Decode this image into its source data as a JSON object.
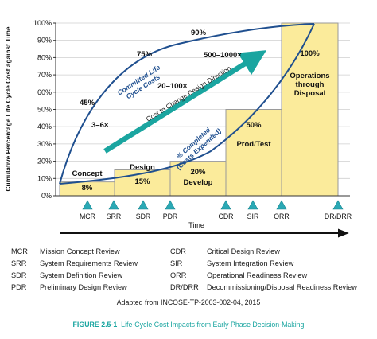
{
  "chart_data": {
    "type": "bar",
    "ylabel": "Cumulative Percentage Life Cycle Cost against Time",
    "xlabel": "Time",
    "ylim": [
      0,
      100
    ],
    "yticks": [
      "0%",
      "10%",
      "20%",
      "30%",
      "40%",
      "50%",
      "60%",
      "70%",
      "80%",
      "90%",
      "100%"
    ],
    "grid": true,
    "phases": [
      {
        "name": "Concept",
        "value_label": "8%",
        "value": 8
      },
      {
        "name": "Design",
        "value_label": "15%",
        "value": 15
      },
      {
        "name": "Develop",
        "value_label": "20%",
        "value": 20
      },
      {
        "name": "Prod/Test",
        "value_label": "50%",
        "value": 50
      },
      {
        "name": "Operations through Disposal",
        "value_label": "100%",
        "value": 100
      }
    ],
    "curves": [
      {
        "name": "Committed Life Cycle Costs",
        "points_labels": [
          "45%",
          "75%",
          "90%"
        ]
      },
      {
        "name": "% Completed (Costs Expended)"
      }
    ],
    "arrow_label": "Cost to Change Design Direction",
    "multipliers": [
      "3–6×",
      "20–100×",
      "500–1000×"
    ],
    "milestones": [
      "MCR",
      "SRR",
      "SDR",
      "PDR",
      "CDR",
      "SIR",
      "ORR",
      "DR/DRR"
    ]
  },
  "legend": {
    "left": [
      {
        "abbr": "MCR",
        "desc": "Mission Concept Review"
      },
      {
        "abbr": "SRR",
        "desc": "System Requirements Review"
      },
      {
        "abbr": "SDR",
        "desc": "System Definition Review"
      },
      {
        "abbr": "PDR",
        "desc": "Preliminary Design Review"
      }
    ],
    "right": [
      {
        "abbr": "CDR",
        "desc": "Critical Design Review"
      },
      {
        "abbr": "SIR",
        "desc": "System Integration Review"
      },
      {
        "abbr": "ORR",
        "desc": "Operational Readiness Review"
      },
      {
        "abbr": "DR/DRR",
        "desc": "Decommissioning/Disposal Readiness Review"
      }
    ]
  },
  "source": "Adapted from INCOSE-TP-2003-002-04, 2015",
  "caption": {
    "label": "FIGURE 2.5-1",
    "text": "Life-Cycle Cost Impacts from Early Phase Decision-Making"
  },
  "colors": {
    "bar_fill": "#fbeb9b",
    "bar_stroke": "#9a9a9a",
    "curve": "#1f4f8f",
    "arrow": "#1aa5a0",
    "milestone": "#2aa9b5",
    "grid": "#cfcfcf",
    "caption": "#1aa5a0"
  }
}
